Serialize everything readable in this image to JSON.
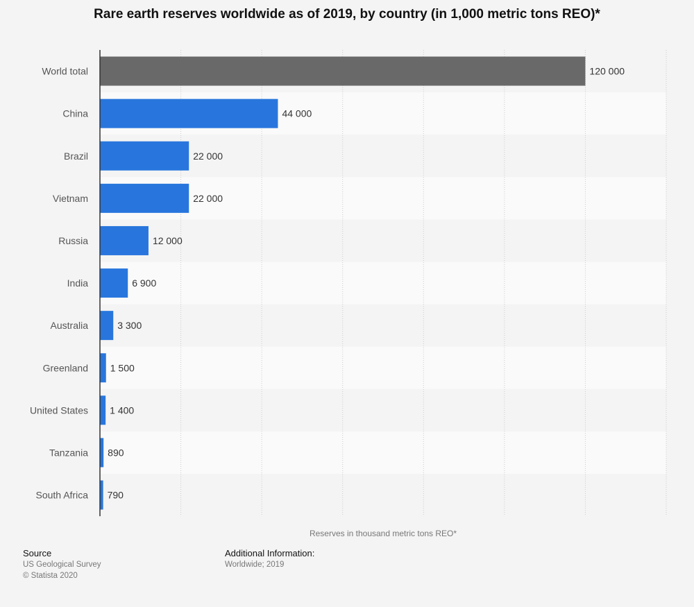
{
  "chart_data": {
    "type": "bar",
    "orientation": "horizontal",
    "title": "Rare earth reserves worldwide as of 2019, by country (in 1,000 metric tons REO)*",
    "xlabel": "Reserves in thousand metric tons REO*",
    "ylabel": "",
    "categories": [
      "World total",
      "China",
      "Brazil",
      "Vietnam",
      "Russia",
      "India",
      "Australia",
      "Greenland",
      "United States",
      "Tanzania",
      "South Africa"
    ],
    "values": [
      120000,
      44000,
      22000,
      22000,
      12000,
      6900,
      3300,
      1500,
      1400,
      890,
      790
    ],
    "value_labels": [
      "120 000",
      "44 000",
      "22 000",
      "22 000",
      "12 000",
      "6 900",
      "3 300",
      "1 500",
      "1 400",
      "890",
      "790"
    ],
    "xlim": [
      0,
      140000
    ],
    "grid": true,
    "colors": {
      "bar": "#2876dd",
      "highlight_bar": "#696969"
    },
    "highlight_category": "World total"
  },
  "footer": {
    "source_heading": "Source",
    "source_lines": [
      "US Geological Survey",
      "© Statista 2020"
    ],
    "info_heading": "Additional Information:",
    "info_lines": [
      "Worldwide; 2019"
    ]
  },
  "colors": {
    "background": "#f4f4f4",
    "row_alt": "#fafafa",
    "row_base": "#f4f4f4",
    "gridline": "#cccccc",
    "axis": "#333333"
  }
}
